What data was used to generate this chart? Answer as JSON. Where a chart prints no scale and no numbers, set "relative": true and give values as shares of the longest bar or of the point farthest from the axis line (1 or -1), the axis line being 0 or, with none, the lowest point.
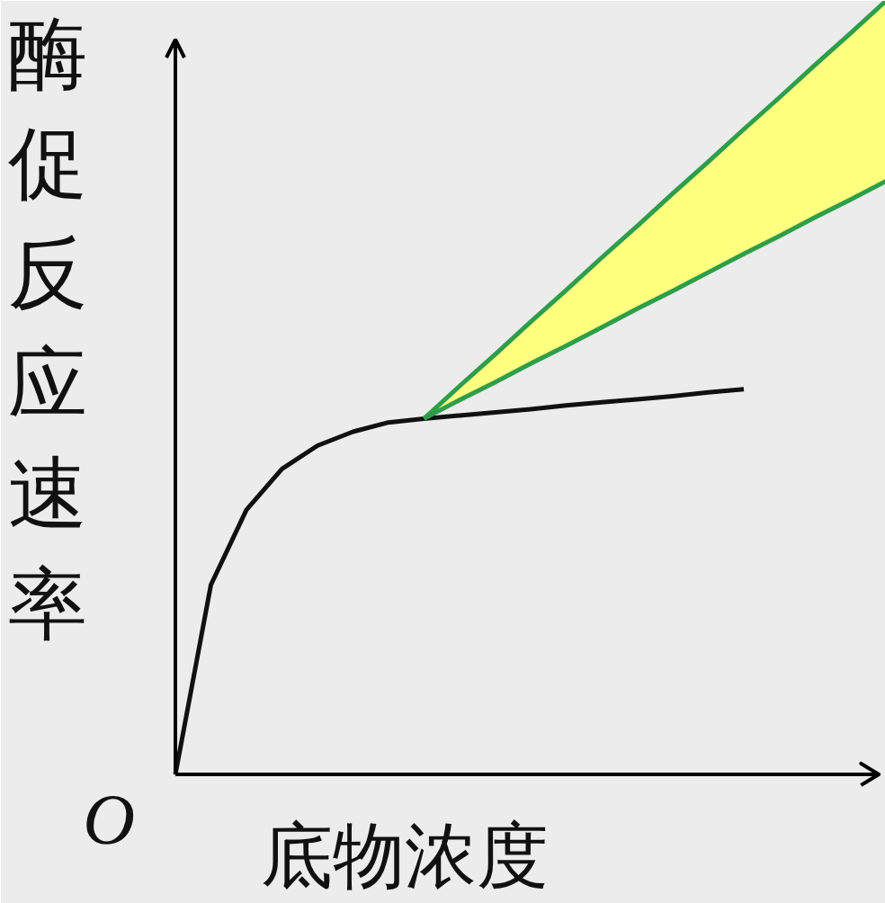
{
  "chart_data": {
    "type": "line",
    "relative": true,
    "xlabel": "底物浓度",
    "ylabel": "酶促反应速率",
    "annotations": [
      "O"
    ],
    "grid": false,
    "marker": "none",
    "line_style": "solid",
    "categories": [
      null,
      null,
      null,
      null,
      null,
      null,
      null,
      null,
      null,
      null,
      null,
      null,
      null,
      null,
      null,
      null,
      null,
      null,
      null,
      null,
      null
    ],
    "series": [
      {
        "color": "#111111",
        "values": [
          0,
          0.245,
          0.342,
          0.395,
          0.425,
          0.443,
          0.455,
          0.46,
          0.464,
          0.468,
          0.472,
          0.477,
          0.481,
          0.485,
          0.489,
          0.494,
          0.498,
          null,
          null,
          null,
          null
        ]
      },
      {
        "color": "#2e9e4a",
        "values": [
          null,
          null,
          null,
          null,
          null,
          null,
          null,
          0.46,
          0.502,
          0.543,
          0.585,
          0.626,
          0.668,
          0.709,
          0.751,
          0.792,
          0.834,
          0.875,
          0.917,
          0.958,
          1.0
        ],
        "lower": [
          null,
          null,
          null,
          null,
          null,
          null,
          null,
          0.46,
          0.484,
          0.507,
          0.531,
          0.554,
          0.578,
          0.602,
          0.625,
          0.649,
          0.673,
          0.696,
          0.72,
          0.743,
          0.767
        ],
        "upper": [
          null,
          null,
          null,
          null,
          null,
          null,
          null,
          0.46,
          0.502,
          0.543,
          0.585,
          0.626,
          0.668,
          0.709,
          0.751,
          0.792,
          0.834,
          0.875,
          0.917,
          0.958,
          1.0
        ]
      },
      {
        "color": "#2e9e4a",
        "values": [
          null,
          null,
          null,
          null,
          null,
          null,
          null,
          0.46,
          0.484,
          0.507,
          0.531,
          0.554,
          0.578,
          0.602,
          0.625,
          0.649,
          0.673,
          0.696,
          0.72,
          0.743,
          0.767
        ]
      }
    ]
  }
}
